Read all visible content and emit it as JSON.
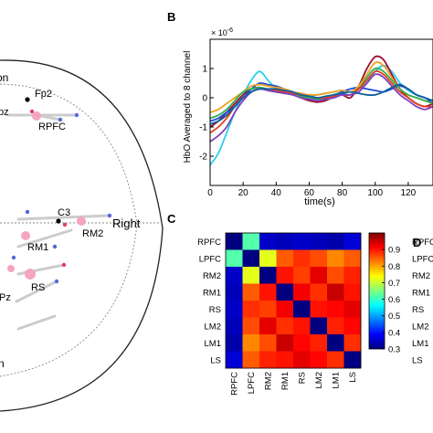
{
  "panels": {
    "b": "B",
    "c": "C",
    "d": "D"
  },
  "head": {
    "labels": {
      "top_fragment": "on",
      "left_fragment": "pz",
      "fp2": "Fp2",
      "rpfc": "RPFC",
      "c3": "C3",
      "right": "Right",
      "rm2": "RM2",
      "rm1": "RM1",
      "rs": "RS",
      "pz_fragment": "Pz",
      "bottom_fragment": "n"
    },
    "colors": {
      "outline": "#222222",
      "grid_dots": "#888888",
      "roi_marker": "#f4a6c0",
      "optode_red": "#e0405a",
      "optode_blue": "#5566dd",
      "electrode": "#000000"
    }
  },
  "chart_data": [
    {
      "type": "line",
      "ylabel": "HbO Averaged to 8 channel",
      "xlabel": "time(s)",
      "exponent": "× 10",
      "exponent_power": "-6",
      "xlim": [
        0,
        135
      ],
      "ylim": [
        -3,
        2
      ],
      "xticks": [
        0,
        20,
        40,
        60,
        80,
        100,
        120
      ],
      "yticks": [
        -2,
        -1,
        0,
        1
      ],
      "x": [
        0,
        5,
        10,
        15,
        20,
        25,
        30,
        35,
        40,
        45,
        50,
        55,
        60,
        65,
        70,
        75,
        80,
        85,
        90,
        95,
        100,
        105,
        110,
        115,
        120,
        125,
        130,
        135
      ],
      "series": [
        {
          "color": "#2bd0f0",
          "values": [
            -2.3,
            -1.9,
            -1.2,
            -0.5,
            0.1,
            0.6,
            0.9,
            0.6,
            0.3,
            0.2,
            0.15,
            0.1,
            0.05,
            0.1,
            0.15,
            0.2,
            0.25,
            0.2,
            0.3,
            0.5,
            0.9,
            1.1,
            0.9,
            0.5,
            0.25,
            0.1,
            0.0,
            -0.1
          ]
        },
        {
          "color": "#9a1030",
          "values": [
            -1.0,
            -0.8,
            -0.5,
            -0.2,
            0.1,
            0.3,
            0.35,
            0.25,
            0.2,
            0.15,
            0.1,
            0.0,
            -0.1,
            -0.15,
            -0.1,
            0.05,
            0.1,
            0.0,
            0.4,
            1.0,
            1.4,
            1.3,
            0.8,
            0.3,
            0.0,
            -0.2,
            -0.3,
            -0.2
          ]
        },
        {
          "color": "#1f4fd8",
          "values": [
            -0.8,
            -0.7,
            -0.5,
            -0.3,
            0.0,
            0.3,
            0.5,
            0.45,
            0.4,
            0.3,
            0.2,
            0.1,
            0.0,
            -0.05,
            0.0,
            0.1,
            0.2,
            0.3,
            0.35,
            0.3,
            0.25,
            0.2,
            0.3,
            0.4,
            0.3,
            0.1,
            0.0,
            -0.2
          ]
        },
        {
          "color": "#f0a020",
          "values": [
            -0.5,
            -0.4,
            -0.2,
            0.0,
            0.2,
            0.4,
            0.45,
            0.4,
            0.35,
            0.3,
            0.2,
            0.15,
            0.1,
            0.1,
            0.15,
            0.2,
            0.25,
            0.2,
            0.4,
            0.8,
            1.2,
            1.1,
            0.7,
            0.3,
            0.1,
            0.0,
            -0.1,
            -0.2
          ]
        },
        {
          "color": "#30b050",
          "values": [
            -0.7,
            -0.6,
            -0.4,
            -0.1,
            0.2,
            0.3,
            0.35,
            0.3,
            0.25,
            0.2,
            0.1,
            0.05,
            0.0,
            -0.05,
            0.0,
            0.1,
            0.15,
            0.1,
            0.3,
            0.7,
            1.0,
            0.9,
            0.6,
            0.3,
            0.1,
            0.0,
            -0.1,
            -0.2
          ]
        },
        {
          "color": "#e04020",
          "values": [
            -1.2,
            -1.0,
            -0.7,
            -0.3,
            0.0,
            0.2,
            0.3,
            0.3,
            0.25,
            0.2,
            0.15,
            0.1,
            0.05,
            0.0,
            0.0,
            0.05,
            0.1,
            0.1,
            0.3,
            0.6,
            0.9,
            0.8,
            0.5,
            0.2,
            0.0,
            -0.2,
            -0.3,
            -0.3
          ]
        },
        {
          "color": "#8040c0",
          "values": [
            -1.5,
            -1.3,
            -1.0,
            -0.5,
            -0.1,
            0.2,
            0.3,
            0.25,
            0.2,
            0.15,
            0.1,
            0.0,
            -0.05,
            -0.1,
            -0.05,
            0.0,
            0.1,
            0.1,
            0.2,
            0.5,
            0.8,
            0.7,
            0.4,
            0.1,
            -0.1,
            -0.3,
            -0.4,
            -0.3
          ]
        },
        {
          "color": "#1060a0",
          "values": [
            -0.9,
            -0.8,
            -0.6,
            -0.3,
            0.0,
            0.2,
            0.3,
            0.3,
            0.3,
            0.25,
            0.2,
            0.1,
            0.05,
            0.0,
            0.05,
            0.1,
            0.15,
            0.2,
            0.15,
            0.1,
            0.1,
            0.2,
            0.35,
            0.45,
            0.3,
            0.1,
            0.0,
            -0.1
          ]
        }
      ]
    },
    {
      "type": "heatmap",
      "x_categories": [
        "RPFC",
        "LPFC",
        "RM2",
        "RM1",
        "RS",
        "LM2",
        "LM1",
        "LS"
      ],
      "y_categories": [
        "RPFC",
        "LPFC",
        "RM2",
        "RM1",
        "RS",
        "LM2",
        "LM1",
        "LS"
      ],
      "colorbar_ticks": [
        0.3,
        0.4,
        0.5,
        0.6,
        0.7,
        0.8,
        0.9
      ],
      "vmin": 0.3,
      "vmax": 1.0,
      "values": [
        [
          0.3,
          0.62,
          0.35,
          0.34,
          0.35,
          0.34,
          0.33,
          0.36
        ],
        [
          0.62,
          0.3,
          0.72,
          0.85,
          0.88,
          0.86,
          0.82,
          0.85
        ],
        [
          0.35,
          0.72,
          0.3,
          0.9,
          0.87,
          0.93,
          0.86,
          0.89
        ],
        [
          0.34,
          0.85,
          0.9,
          0.3,
          0.92,
          0.88,
          0.95,
          0.9
        ],
        [
          0.35,
          0.88,
          0.87,
          0.92,
          0.3,
          0.9,
          0.91,
          0.93
        ],
        [
          0.34,
          0.86,
          0.93,
          0.88,
          0.9,
          0.3,
          0.89,
          0.91
        ],
        [
          0.33,
          0.82,
          0.86,
          0.95,
          0.91,
          0.89,
          0.3,
          0.88
        ],
        [
          0.36,
          0.85,
          0.89,
          0.9,
          0.93,
          0.91,
          0.88,
          0.3
        ]
      ]
    },
    {
      "type": "heatmap",
      "y_categories": [
        "RPFC",
        "LPFC",
        "RM2",
        "RM1",
        "RS",
        "LM2",
        "LM1",
        "LS"
      ]
    }
  ]
}
